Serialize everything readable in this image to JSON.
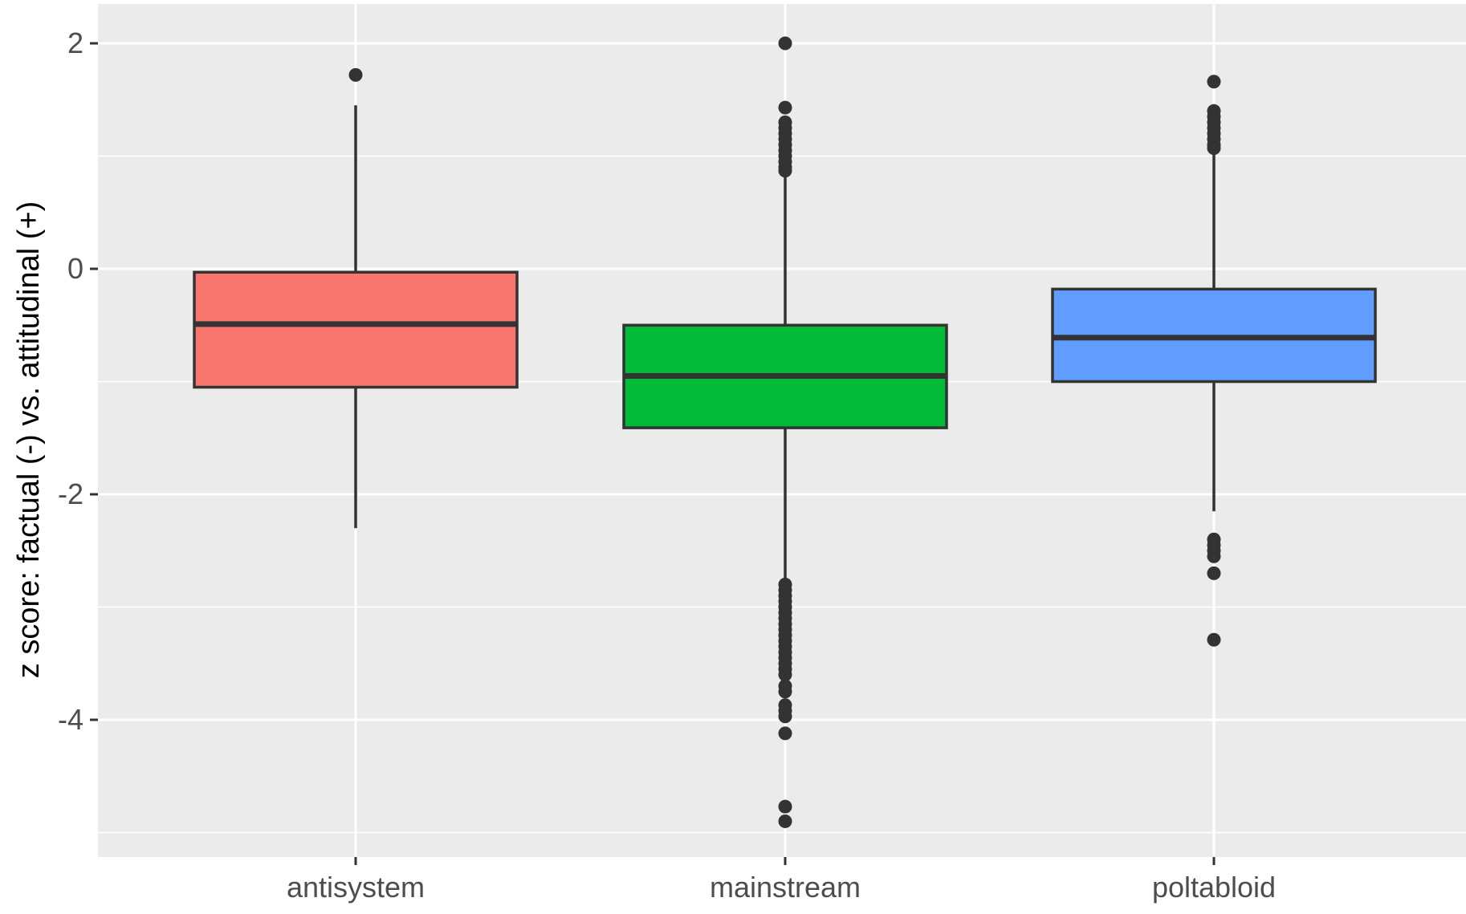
{
  "chart_data": {
    "type": "boxplot",
    "title": "",
    "xlabel": "",
    "ylabel": "z score: factual (-) vs. attitudinal (+)",
    "ylim": [
      -5.25,
      2.35
    ],
    "yticks": [
      2,
      0,
      -2,
      -4
    ],
    "ytick_labels": [
      "2",
      "0",
      "-2",
      "-4"
    ],
    "minor_grid": [
      1,
      -1,
      -3,
      -5
    ],
    "grid": true,
    "legend": "none",
    "categories": [
      "antisystem",
      "mainstream",
      "poltabloid"
    ],
    "boxes": [
      {
        "category": "antisystem",
        "color": "#F8766D",
        "whisker_low": -2.3,
        "q1": -1.05,
        "median": -0.49,
        "q3": -0.03,
        "whisker_high": 1.45,
        "outliers": [
          1.72
        ]
      },
      {
        "category": "mainstream",
        "color": "#00BA38",
        "whisker_low": -2.77,
        "q1": -1.41,
        "median": -0.95,
        "q3": -0.5,
        "whisker_high": 0.83,
        "outliers": [
          2.0,
          1.43,
          1.3,
          1.25,
          1.2,
          1.15,
          1.1,
          1.05,
          1.0,
          0.95,
          0.9,
          0.87,
          -2.8,
          -2.85,
          -2.9,
          -2.95,
          -3.0,
          -3.05,
          -3.1,
          -3.15,
          -3.2,
          -3.25,
          -3.3,
          -3.35,
          -3.4,
          -3.45,
          -3.5,
          -3.55,
          -3.6,
          -3.7,
          -3.75,
          -3.87,
          -3.92,
          -3.97,
          -4.12,
          -4.77,
          -4.9
        ]
      },
      {
        "category": "poltabloid",
        "color": "#619CFF",
        "whisker_low": -2.15,
        "q1": -1.0,
        "median": -0.61,
        "q3": -0.18,
        "whisker_high": 1.03,
        "outliers": [
          1.66,
          1.4,
          1.35,
          1.3,
          1.25,
          1.2,
          1.15,
          1.1,
          1.07,
          -2.4,
          -2.45,
          -2.5,
          -2.55,
          -2.7,
          -3.29
        ]
      }
    ]
  }
}
